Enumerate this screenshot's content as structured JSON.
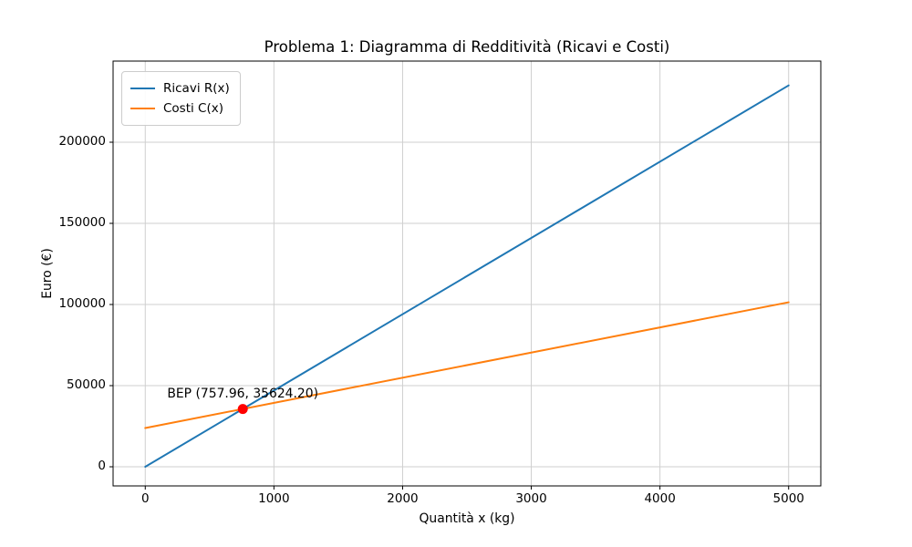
{
  "chart": {
    "title": "Problema 1: Diagramma di Redditività (Ricavi e Costi)",
    "xlabel": "Quantità x (kg)",
    "ylabel": "Euro (€)"
  },
  "legend": {
    "items": [
      {
        "label": "Ricavi R(x)",
        "color": "#1f77b4"
      },
      {
        "label": "Costi C(x)",
        "color": "#ff7f0e"
      }
    ]
  },
  "chart_data": {
    "type": "line",
    "title": "Problema 1: Diagramma di Redditività (Ricavi e Costi)",
    "xlabel": "Quantità x (kg)",
    "ylabel": "Euro (€)",
    "x": [
      0,
      5000
    ],
    "series": [
      {
        "name": "Ricavi R(x)",
        "color": "#1f77b4",
        "values": [
          0,
          235000
        ]
      },
      {
        "name": "Costi C(x)",
        "color": "#ff7f0e",
        "values": [
          23876,
          101376
        ]
      }
    ],
    "bep": {
      "x": 757.96,
      "y": 35624.2,
      "label": "BEP (757.96, 35624.20)",
      "color": "#ff0000"
    },
    "x_ticks": [
      0,
      1000,
      2000,
      3000,
      4000,
      5000
    ],
    "y_ticks": [
      0,
      50000,
      100000,
      150000,
      200000
    ],
    "xlim": [
      -250,
      5250
    ],
    "ylim": [
      -11800,
      250000
    ],
    "grid": true,
    "grid_color": "#cfcfcf",
    "spine_color": "#000000",
    "legend_position": "upper left"
  }
}
